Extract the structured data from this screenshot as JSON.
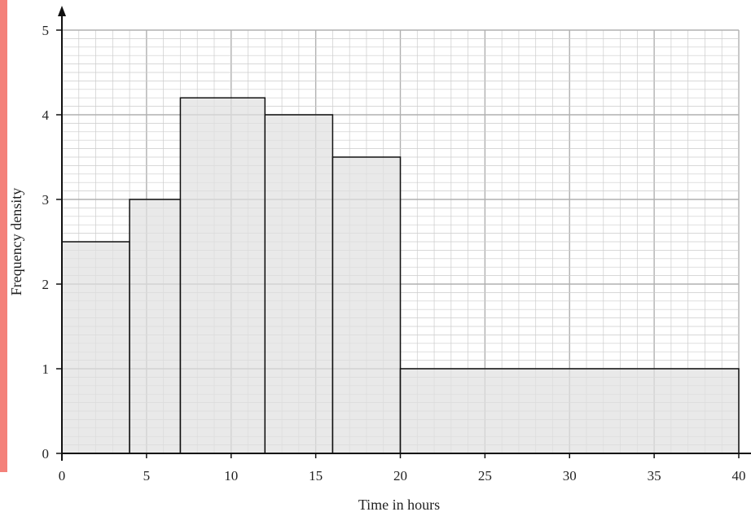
{
  "colors": {
    "accent_strip": "#f4817a",
    "bar_fill": "#e0e0e0",
    "bar_stroke": "#111111",
    "grid_minor": "#cccccc",
    "grid_major": "#b0b0b0",
    "axis": "#111111"
  },
  "chart_data": {
    "type": "bar",
    "variant": "histogram",
    "xlabel": "Time in hours",
    "ylabel": "Frequency density",
    "xlim": [
      0,
      40
    ],
    "ylim": [
      0,
      5
    ],
    "x_ticks": [
      "0",
      "5",
      "10",
      "15",
      "20",
      "25",
      "30",
      "35",
      "40"
    ],
    "y_ticks": [
      "0",
      "1",
      "2",
      "3",
      "4",
      "5"
    ],
    "grid": true,
    "bins": [
      {
        "start": 0,
        "end": 4,
        "value": 2.5
      },
      {
        "start": 4,
        "end": 7,
        "value": 3
      },
      {
        "start": 7,
        "end": 12,
        "value": 4.2
      },
      {
        "start": 12,
        "end": 16,
        "value": 4
      },
      {
        "start": 16,
        "end": 20,
        "value": 3.5
      },
      {
        "start": 20,
        "end": 40,
        "value": 1
      }
    ]
  }
}
